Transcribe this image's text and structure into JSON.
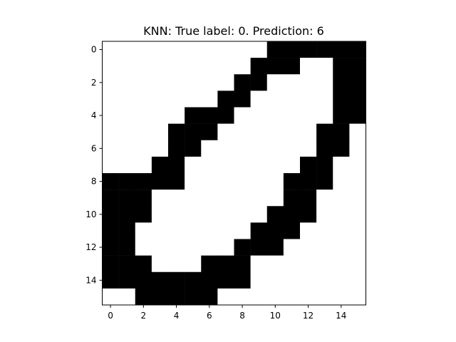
{
  "chart_data": {
    "type": "heatmap",
    "title": "KNN: True label: 0. Prediction: 6",
    "xlabel": "",
    "ylabel": "",
    "colormap": "gray_r",
    "colors": {
      "on": "#000000",
      "off": "#ffffff"
    },
    "grid": false,
    "x_ticks": [
      "0",
      "2",
      "4",
      "6",
      "8",
      "10",
      "12",
      "14"
    ],
    "y_ticks": [
      "0",
      "2",
      "4",
      "6",
      "8",
      "10",
      "12",
      "14"
    ],
    "xlim": [
      -0.5,
      15.5
    ],
    "ylim": [
      15.5,
      -0.5
    ],
    "matrix": [
      [
        0,
        0,
        0,
        0,
        0,
        0,
        0,
        0,
        0,
        0,
        1,
        1,
        1,
        1,
        1,
        1
      ],
      [
        0,
        0,
        0,
        0,
        0,
        0,
        0,
        0,
        0,
        1,
        1,
        1,
        0,
        0,
        1,
        1
      ],
      [
        0,
        0,
        0,
        0,
        0,
        0,
        0,
        0,
        1,
        1,
        0,
        0,
        0,
        0,
        1,
        1
      ],
      [
        0,
        0,
        0,
        0,
        0,
        0,
        0,
        1,
        1,
        0,
        0,
        0,
        0,
        0,
        1,
        1
      ],
      [
        0,
        0,
        0,
        0,
        0,
        1,
        1,
        1,
        0,
        0,
        0,
        0,
        0,
        0,
        1,
        1
      ],
      [
        0,
        0,
        0,
        0,
        1,
        1,
        1,
        0,
        0,
        0,
        0,
        0,
        0,
        1,
        1,
        0
      ],
      [
        0,
        0,
        0,
        0,
        1,
        1,
        0,
        0,
        0,
        0,
        0,
        0,
        0,
        1,
        1,
        0
      ],
      [
        0,
        0,
        0,
        1,
        1,
        0,
        0,
        0,
        0,
        0,
        0,
        0,
        1,
        1,
        0,
        0
      ],
      [
        1,
        1,
        1,
        1,
        1,
        0,
        0,
        0,
        0,
        0,
        0,
        1,
        1,
        1,
        0,
        0
      ],
      [
        1,
        1,
        1,
        0,
        0,
        0,
        0,
        0,
        0,
        0,
        0,
        1,
        1,
        0,
        0,
        0
      ],
      [
        1,
        1,
        1,
        0,
        0,
        0,
        0,
        0,
        0,
        0,
        1,
        1,
        1,
        0,
        0,
        0
      ],
      [
        1,
        1,
        0,
        0,
        0,
        0,
        0,
        0,
        0,
        1,
        1,
        1,
        0,
        0,
        0,
        0
      ],
      [
        1,
        1,
        0,
        0,
        0,
        0,
        0,
        0,
        1,
        1,
        1,
        0,
        0,
        0,
        0,
        0
      ],
      [
        1,
        1,
        1,
        0,
        0,
        0,
        1,
        1,
        1,
        0,
        0,
        0,
        0,
        0,
        0,
        0
      ],
      [
        1,
        1,
        1,
        1,
        1,
        1,
        1,
        1,
        1,
        0,
        0,
        0,
        0,
        0,
        0,
        0
      ],
      [
        0,
        0,
        1,
        1,
        1,
        1,
        1,
        0,
        0,
        0,
        0,
        0,
        0,
        0,
        0,
        0
      ]
    ]
  }
}
